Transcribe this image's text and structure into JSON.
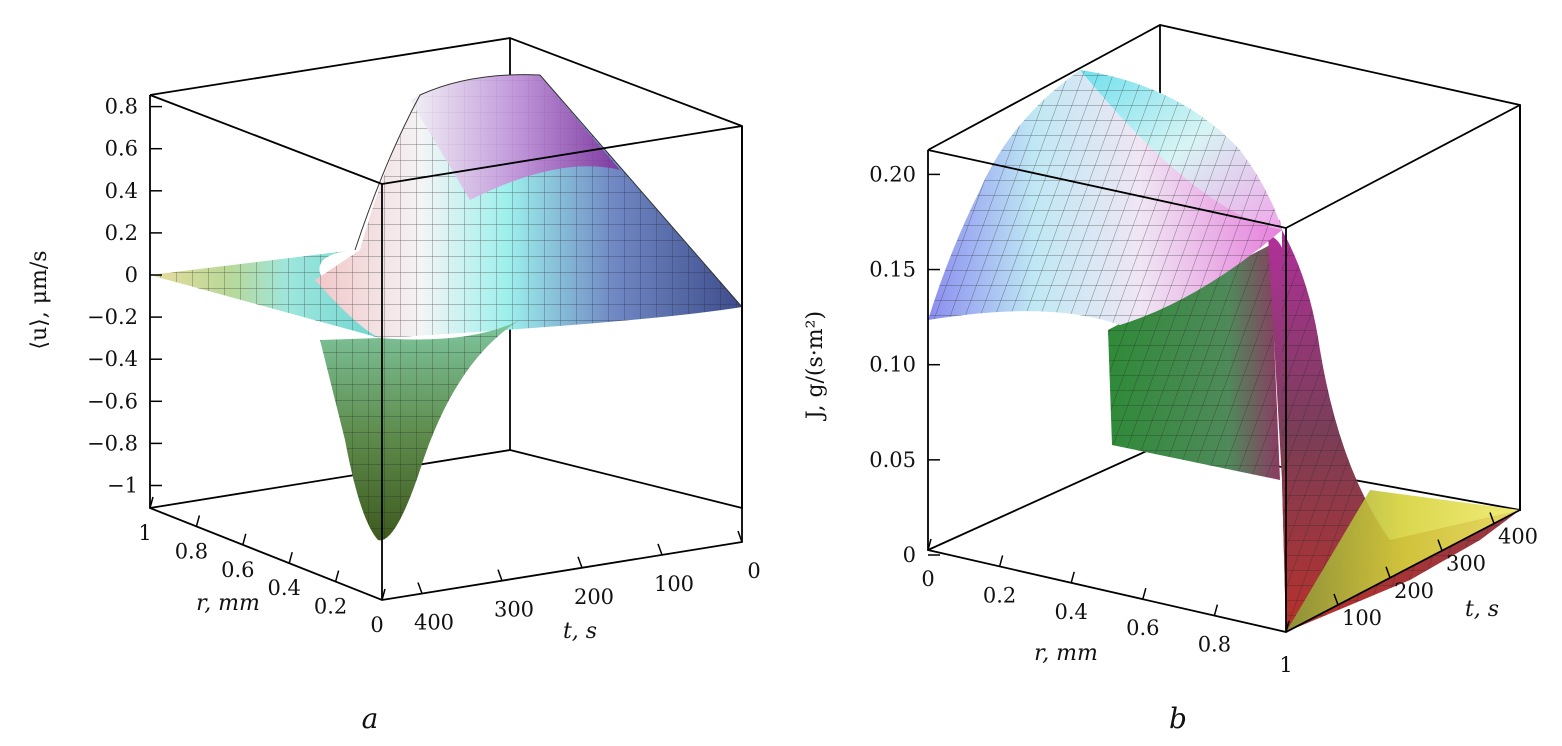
{
  "chart_data": [
    {
      "type": "surface3d",
      "panel_label": "a",
      "zlabel": "⟨u⟩, μm/s",
      "xlabel": "r, mm",
      "ylabel": "t, s",
      "x_ticks": [
        "1",
        "0.8",
        "0.6",
        "0.4",
        "0.2",
        "0"
      ],
      "x_tick_values": [
        1,
        0.8,
        0.6,
        0.4,
        0.2,
        0
      ],
      "y_ticks": [
        "400",
        "300",
        "200",
        "100",
        "0"
      ],
      "y_tick_values": [
        400,
        300,
        200,
        100,
        0
      ],
      "z_ticks": [
        "0.8",
        "0.6",
        "0.4",
        "0.2",
        "0",
        "−0.2",
        "−0.4",
        "−0.6",
        "−0.8",
        "−1"
      ],
      "z_tick_values": [
        0.8,
        0.6,
        0.4,
        0.2,
        0,
        -0.2,
        -0.4,
        -0.6,
        -0.8,
        -1
      ],
      "xlim": [
        0,
        1
      ],
      "ylim": [
        0,
        450
      ],
      "zlim": [
        -1.1,
        0.85
      ],
      "surface_samples": {
        "r": [
          0,
          0.2,
          0.4,
          0.6,
          0.8,
          1.0
        ],
        "t": [
          0,
          100,
          200,
          300,
          400,
          450
        ],
        "u_at_r0": [
          -0.2,
          0.0,
          0.4,
          0.8,
          0.6,
          -0.95
        ]
      },
      "colormap": "gold-green-cyan-white-magenta-blue"
    },
    {
      "type": "surface3d",
      "panel_label": "b",
      "zlabel": "J, g/(s·m²)",
      "xlabel": "r, mm",
      "ylabel": "t, s",
      "x_ticks": [
        "0",
        "0.2",
        "0.4",
        "0.6",
        "0.8",
        "1"
      ],
      "x_tick_values": [
        0,
        0.2,
        0.4,
        0.6,
        0.8,
        1
      ],
      "y_ticks": [
        "100",
        "200",
        "300",
        "400"
      ],
      "y_tick_values": [
        100,
        200,
        300,
        400
      ],
      "z_ticks": [
        "0.20",
        "0.15",
        "0.10",
        "0.05",
        "0"
      ],
      "z_tick_values": [
        0.2,
        0.15,
        0.1,
        0.05,
        0
      ],
      "xlim": [
        0,
        1
      ],
      "ylim": [
        0,
        450
      ],
      "zlim": [
        0,
        0.22
      ],
      "surface_samples": {
        "r": [
          0,
          0.5,
          0.9,
          1.0
        ],
        "t": [
          0,
          50,
          100,
          200,
          300,
          450
        ],
        "J_at_r0": [
          0.12,
          0.17,
          0.21,
          0.2,
          0.18,
          0.12
        ]
      },
      "colormap": "red-green-yellow-cyan-magenta-blue"
    }
  ]
}
